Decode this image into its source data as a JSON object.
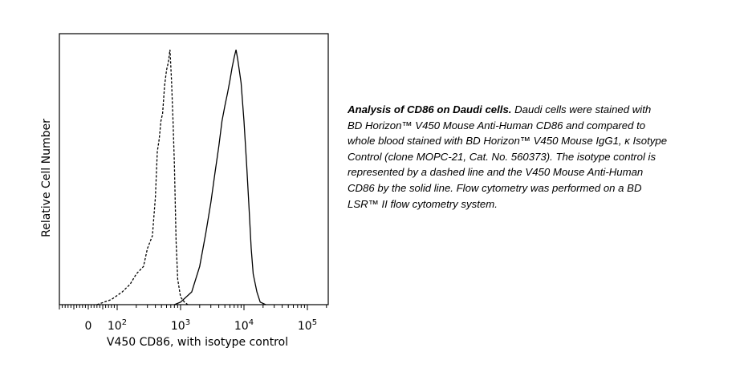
{
  "chart_data": {
    "type": "line",
    "xlabel": "V450 CD86, with isotype control",
    "ylabel": "Relative Cell Number",
    "x_scale": "biexponential",
    "x_ticks": [
      {
        "base": "0",
        "exp": ""
      },
      {
        "base": "10",
        "exp": "2"
      },
      {
        "base": "10",
        "exp": "3"
      },
      {
        "base": "10",
        "exp": "4"
      },
      {
        "base": "10",
        "exp": "5"
      }
    ],
    "grid": false,
    "series": [
      {
        "style": "dashed",
        "x": [
          30,
          80,
          120,
          160,
          200,
          260,
          300,
          360,
          400,
          430,
          460,
          490,
          520,
          560,
          600,
          640,
          680,
          720,
          760,
          800,
          850,
          900,
          1000,
          1150,
          1300
        ],
        "y": [
          0,
          0.02,
          0.05,
          0.08,
          0.12,
          0.15,
          0.22,
          0.27,
          0.42,
          0.6,
          0.65,
          0.72,
          0.75,
          0.86,
          0.92,
          0.95,
          1.0,
          0.88,
          0.72,
          0.55,
          0.25,
          0.1,
          0.03,
          0.01,
          0
        ]
      },
      {
        "style": "solid",
        "x": [
          800,
          1000,
          1500,
          2000,
          2500,
          3000,
          3500,
          4000,
          4500,
          5000,
          5500,
          6000,
          6500,
          7000,
          7500,
          8000,
          9000,
          10000,
          11000,
          12000,
          13000,
          14000,
          16000,
          18000,
          22000
        ],
        "y": [
          0,
          0.01,
          0.05,
          0.15,
          0.28,
          0.4,
          0.52,
          0.62,
          0.72,
          0.78,
          0.83,
          0.88,
          0.93,
          0.97,
          1.0,
          0.96,
          0.87,
          0.72,
          0.55,
          0.38,
          0.22,
          0.12,
          0.05,
          0.01,
          0
        ]
      }
    ]
  },
  "caption": {
    "title": "Analysis of CD86 on Daudi cells.",
    "body": " Daudi cells were stained with BD Horizon™ V450 Mouse Anti-Human CD86 and compared to whole blood stained with BD Horizon™ V450 Mouse IgG1, κ Isotype Control (clone MOPC-21, Cat. No. 560373). The isotype control is represented by a dashed line and the V450 Mouse Anti-Human CD86 by the solid line. Flow cytometry was performed on a BD LSR™ II flow cytometry system."
  }
}
